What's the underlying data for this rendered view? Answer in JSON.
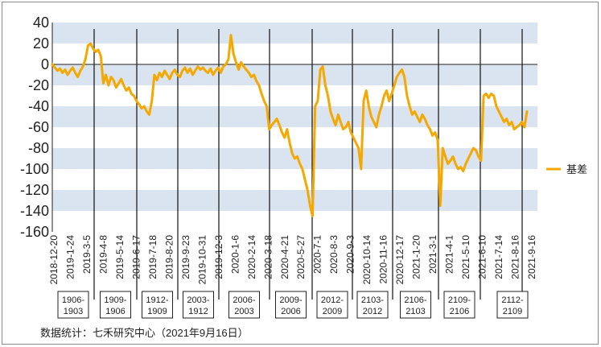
{
  "chart_data": {
    "type": "line",
    "title": "",
    "xlabel": "",
    "ylabel": "",
    "ylim": [
      -160,
      40
    ],
    "yticks": [
      40,
      20,
      0,
      -20,
      -40,
      -60,
      -80,
      -100,
      -120,
      -140,
      -160
    ],
    "grid": "alternating horizontal bands",
    "legend_position": "right",
    "x_tick_labels": [
      "2018-12-20",
      "2019-1-24",
      "2019-3-5",
      "2019-4-8",
      "2019-5-14",
      "2019-6-17",
      "2019-7-18",
      "2019-8-20",
      "2019-9-23",
      "2019-10-31",
      "2019-12-3",
      "2020-1-6",
      "2020-2-14",
      "2020-3-18",
      "2020-4-21",
      "2020-5-27",
      "2020-7-1",
      "2020-8-3",
      "2020-9-3",
      "2020-10-14",
      "2020-11-16",
      "2020-12-17",
      "2021-1-20",
      "2021-3-1",
      "2021-4-1",
      "2021-5-10",
      "2021-6-10",
      "2021-7-14",
      "2021-8-16",
      "2021-9-16"
    ],
    "period_labels": [
      {
        "line1": "1906-",
        "line2": "1903"
      },
      {
        "line1": "1909-",
        "line2": "1906"
      },
      {
        "line1": "1912-",
        "line2": "1909"
      },
      {
        "line1": "2003-",
        "line2": "1912"
      },
      {
        "line1": "2006-",
        "line2": "2003"
      },
      {
        "line1": "2009-",
        "line2": "2006"
      },
      {
        "line1": "2012-",
        "line2": "2009"
      },
      {
        "line1": "2103-",
        "line2": "2012"
      },
      {
        "line1": "2106-",
        "line2": "2103"
      },
      {
        "line1": "2109-",
        "line2": "2106"
      },
      {
        "line1": "2112-",
        "line2": "2109"
      }
    ],
    "series": [
      {
        "name": "基差",
        "color": "#f5a800",
        "values": [
          0,
          -3,
          -6,
          -4,
          -8,
          -5,
          -10,
          -6,
          -3,
          -8,
          -12,
          -6,
          -2,
          5,
          18,
          20,
          15,
          12,
          14,
          8,
          -18,
          -10,
          -20,
          -12,
          -15,
          -22,
          -18,
          -14,
          -20,
          -25,
          -22,
          -28,
          -30,
          -35,
          -38,
          -42,
          -40,
          -45,
          -48,
          -35,
          -10,
          -15,
          -8,
          -12,
          -6,
          -10,
          -14,
          -8,
          -5,
          -10,
          -12,
          -6,
          -3,
          -8,
          -4,
          -10,
          -6,
          -2,
          -5,
          -3,
          -6,
          -8,
          -4,
          -10,
          -6,
          -3,
          -8,
          -2,
          0,
          5,
          28,
          10,
          2,
          -5,
          2,
          -2,
          -5,
          -8,
          -12,
          -10,
          -16,
          -20,
          -28,
          -35,
          -40,
          -62,
          -58,
          -55,
          -52,
          -58,
          -65,
          -70,
          -62,
          -75,
          -85,
          -90,
          -88,
          -95,
          -100,
          -110,
          -120,
          -135,
          -145,
          -40,
          -35,
          -5,
          -2,
          -20,
          -30,
          -45,
          -52,
          -58,
          -48,
          -55,
          -62,
          -60,
          -55,
          -65,
          -70,
          -75,
          -80,
          -100,
          -35,
          -25,
          -40,
          -50,
          -55,
          -60,
          -48,
          -40,
          -30,
          -25,
          -35,
          -28,
          -20,
          -12,
          -8,
          -5,
          -12,
          -30,
          -40,
          -48,
          -45,
          -50,
          -55,
          -48,
          -52,
          -58,
          -62,
          -68,
          -65,
          -72,
          -135,
          -80,
          -88,
          -95,
          -92,
          -88,
          -95,
          -100,
          -98,
          -102,
          -95,
          -90,
          -85,
          -80,
          -82,
          -88,
          -92,
          -30,
          -28,
          -32,
          -28,
          -30,
          -40,
          -45,
          -50,
          -55,
          -52,
          -58,
          -55,
          -62,
          -60,
          -58,
          -55,
          -60,
          -45
        ]
      }
    ]
  },
  "source_note": "数据统计：七禾研究中心（2021年9月16日）"
}
